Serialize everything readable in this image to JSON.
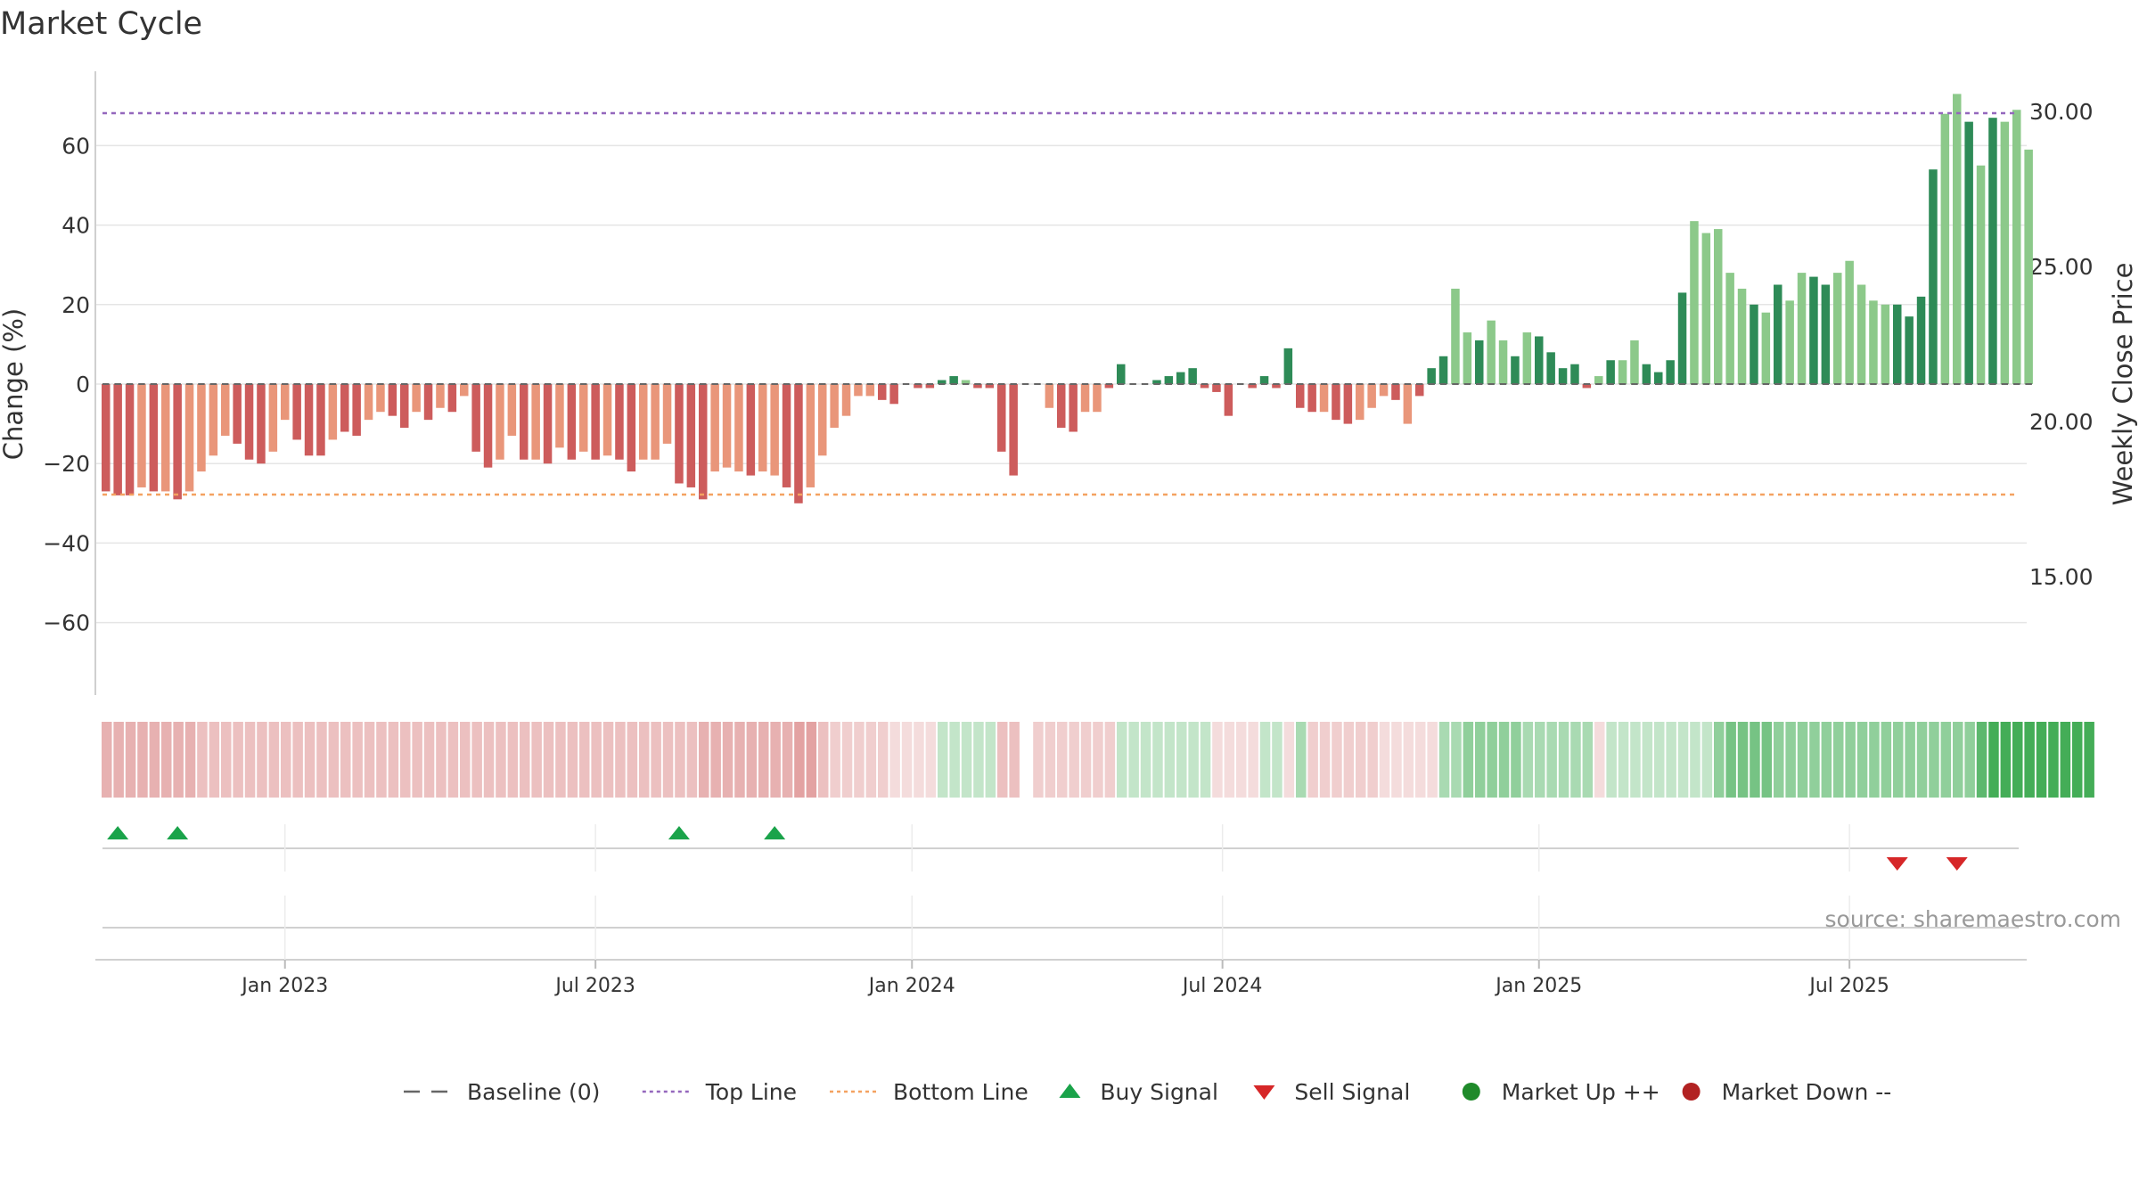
{
  "title": "Market Cycle",
  "source": "source: sharemaestro.com",
  "y_left": {
    "label": "Change (%)",
    "ticks": [
      60,
      40,
      20,
      0,
      -20,
      -40,
      -60
    ],
    "tick_labels": [
      "60",
      "40",
      "20",
      "0",
      "−20",
      "−40",
      "−60"
    ],
    "range": [
      -78,
      78
    ]
  },
  "y_right": {
    "label": "Weekly Close Price",
    "ticks": [
      30,
      25,
      20,
      15
    ],
    "tick_labels": [
      "30.00",
      "25.00",
      "20.00",
      "15.00"
    ]
  },
  "x_axis": {
    "ticks": [
      {
        "label": "Jan 2023",
        "week": 15
      },
      {
        "label": "Jul 2023",
        "week": 41
      },
      {
        "label": "Jan 2024",
        "week": 67.5
      },
      {
        "label": "Jul 2024",
        "week": 93.5
      },
      {
        "label": "Jan 2025",
        "week": 120
      },
      {
        "label": "Jul 2025",
        "week": 146
      }
    ]
  },
  "legend": [
    {
      "label": "Baseline (0)",
      "kind": "dash",
      "color": "#666666"
    },
    {
      "label": "Top Line",
      "kind": "dot",
      "color": "#9467bd"
    },
    {
      "label": "Bottom Line",
      "kind": "dot",
      "color": "#f4a261"
    },
    {
      "label": "Buy Signal",
      "kind": "tri-up",
      "color": "#1aa34a"
    },
    {
      "label": "Sell Signal",
      "kind": "tri-down",
      "color": "#d62728"
    },
    {
      "label": "Market Up ++",
      "kind": "circle",
      "color": "#1f8a2a"
    },
    {
      "label": "Market Down --",
      "kind": "circle",
      "color": "#b22222"
    }
  ],
  "colors": {
    "pos_dark": "#2e8b57",
    "pos_light": "#8cc98a",
    "neg_dark": "#cd5c5c",
    "neg_light": "#e9967a",
    "top_line": "#9467bd",
    "bottom_line": "#f4a261",
    "grid": "#e5e5e5"
  },
  "chart_data": {
    "type": "bar",
    "x_unit": "week",
    "top_line": 68,
    "bottom_line": -28,
    "values": [
      -27,
      -28,
      -28,
      -26,
      -27,
      -27,
      -29,
      -27,
      -22,
      -18,
      -13,
      -15,
      -19,
      -20,
      -17,
      -9,
      -14,
      -18,
      -18,
      -14,
      -12,
      -13,
      -9,
      -7,
      -8,
      -11,
      -7,
      -9,
      -6,
      -7,
      -3,
      -17,
      -21,
      -19,
      -13,
      -19,
      -19,
      -20,
      -16,
      -19,
      -17,
      -19,
      -18,
      -19,
      -22,
      -19,
      -19,
      -15,
      -25,
      -26,
      -29,
      -22,
      -21,
      -22,
      -23,
      -22,
      -23,
      -26,
      -30,
      -26,
      -18,
      -11,
      -8,
      -3,
      -3,
      -4,
      -5,
      0,
      -1,
      -1,
      1,
      2,
      1,
      -1,
      -1,
      -17,
      -23,
      0,
      0,
      -6,
      -11,
      -12,
      -7,
      -7,
      -1,
      5,
      0,
      0,
      1,
      2,
      3,
      4,
      -1,
      -2,
      -8,
      0,
      -1,
      2,
      -1,
      9,
      -6,
      -7,
      -7,
      -9,
      -10,
      -9,
      -6,
      -3,
      -4,
      -10,
      -3,
      4,
      7,
      24,
      13,
      11,
      16,
      11,
      7,
      13,
      12,
      8,
      4,
      5,
      -1,
      2,
      6,
      6,
      11,
      5,
      3,
      6,
      23,
      41,
      38,
      39,
      28,
      24,
      20,
      18,
      25,
      21,
      28,
      27,
      25,
      28,
      31,
      25,
      21,
      20,
      20,
      17,
      22,
      54,
      68,
      73,
      66,
      55,
      67,
      66,
      69,
      59
    ],
    "shades": [
      1,
      1,
      1,
      0,
      1,
      0,
      1,
      0,
      0,
      0,
      0,
      1,
      1,
      1,
      0,
      0,
      1,
      1,
      1,
      0,
      1,
      1,
      0,
      0,
      1,
      1,
      0,
      1,
      0,
      1,
      0,
      1,
      1,
      0,
      0,
      1,
      0,
      1,
      0,
      1,
      0,
      1,
      0,
      1,
      1,
      0,
      0,
      0,
      1,
      1,
      1,
      0,
      0,
      0,
      1,
      0,
      0,
      1,
      1,
      0,
      0,
      0,
      0,
      0,
      0,
      1,
      1,
      1,
      1,
      1,
      1,
      1,
      0,
      1,
      1,
      1,
      1,
      1,
      1,
      0,
      1,
      1,
      0,
      0,
      1,
      1,
      1,
      1,
      1,
      1,
      1,
      1,
      1,
      1,
      1,
      1,
      1,
      1,
      1,
      1,
      1,
      1,
      0,
      1,
      1,
      0,
      0,
      0,
      1,
      0,
      1,
      1,
      1,
      0,
      0,
      1,
      0,
      0,
      1,
      0,
      1,
      1,
      1,
      1,
      1,
      0,
      1,
      0,
      0,
      1,
      1,
      1,
      1,
      0,
      0,
      0,
      0,
      0,
      1,
      0,
      1,
      0,
      0,
      1,
      1,
      0,
      0,
      0,
      0,
      0,
      1,
      1,
      1,
      1,
      0,
      0,
      1,
      0,
      1,
      0
    ],
    "regime_intensity": [
      -4,
      -4,
      -4,
      -4,
      -4,
      -4,
      -4,
      -4,
      -3,
      -3,
      -3,
      -3,
      -3,
      -3,
      -3,
      -3,
      -3,
      -3,
      -3,
      -3,
      -3,
      -3,
      -3,
      -3,
      -3,
      -3,
      -3,
      -3,
      -3,
      -3,
      -3,
      -3,
      -3,
      -3,
      -3,
      -3,
      -3,
      -3,
      -3,
      -3,
      -3,
      -3,
      -3,
      -3,
      -3,
      -3,
      -3,
      -3,
      -3,
      -3,
      -4,
      -4,
      -4,
      -4,
      -4,
      -4,
      -4,
      -4,
      -5,
      -5,
      -3,
      -2,
      -2,
      -2,
      -2,
      -2,
      -1,
      -1,
      -1,
      -1,
      1,
      1,
      1,
      1,
      1,
      -3,
      -3,
      0,
      -2,
      -2,
      -2,
      -2,
      -2,
      -2,
      -2,
      1,
      1,
      1,
      1,
      1,
      1,
      1,
      1,
      -1,
      -1,
      -1,
      -1,
      1,
      1,
      -1,
      2,
      -2,
      -2,
      -2,
      -2,
      -2,
      -2,
      -1,
      -1,
      -1,
      -1,
      -1,
      2,
      2,
      3,
      3,
      3,
      3,
      3,
      2,
      2,
      2,
      2,
      2,
      2,
      -1,
      1,
      1,
      1,
      1,
      1,
      1,
      1,
      1,
      1,
      3,
      4,
      4,
      4,
      4,
      3,
      3,
      3,
      3,
      3,
      3,
      3,
      3,
      3,
      3,
      3,
      3,
      3,
      3,
      3,
      3,
      3,
      5,
      6,
      6,
      6,
      6,
      6,
      6,
      6,
      6,
      6
    ],
    "buy_signals": [
      1,
      6,
      48,
      56
    ],
    "sell_signals": [
      150,
      155
    ],
    "price_ticks": [
      30,
      25,
      20,
      15
    ]
  }
}
